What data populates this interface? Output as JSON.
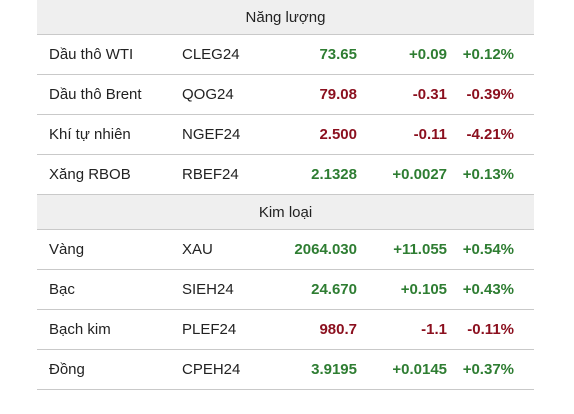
{
  "sections": [
    {
      "title": "Năng lượng",
      "rows": [
        {
          "name": "Dầu thô WTI",
          "symbol": "CLEG24",
          "price": "73.65",
          "change": "+0.09",
          "pct": "+0.12%",
          "dir": "up"
        },
        {
          "name": "Dầu thô Brent",
          "symbol": "QOG24",
          "price": "79.08",
          "change": "-0.31",
          "pct": "-0.39%",
          "dir": "down"
        },
        {
          "name": "Khí tự nhiên",
          "symbol": "NGEF24",
          "price": "2.500",
          "change": "-0.11",
          "pct": "-4.21%",
          "dir": "down"
        },
        {
          "name": "Xăng RBOB",
          "symbol": "RBEF24",
          "price": "2.1328",
          "change": "+0.0027",
          "pct": "+0.13%",
          "dir": "up"
        }
      ]
    },
    {
      "title": "Kim loại",
      "rows": [
        {
          "name": "Vàng",
          "symbol": "XAU",
          "price": "2064.030",
          "change": "+11.055",
          "pct": "+0.54%",
          "dir": "up"
        },
        {
          "name": "Bạc",
          "symbol": "SIEH24",
          "price": "24.670",
          "change": "+0.105",
          "pct": "+0.43%",
          "dir": "up"
        },
        {
          "name": "Bạch kim",
          "symbol": "PLEF24",
          "price": "980.7",
          "change": "-1.1",
          "pct": "-0.11%",
          "dir": "down"
        },
        {
          "name": "Đồng",
          "symbol": "CPEH24",
          "price": "3.9195",
          "change": "+0.0145",
          "pct": "+0.37%",
          "dir": "up"
        }
      ]
    }
  ]
}
